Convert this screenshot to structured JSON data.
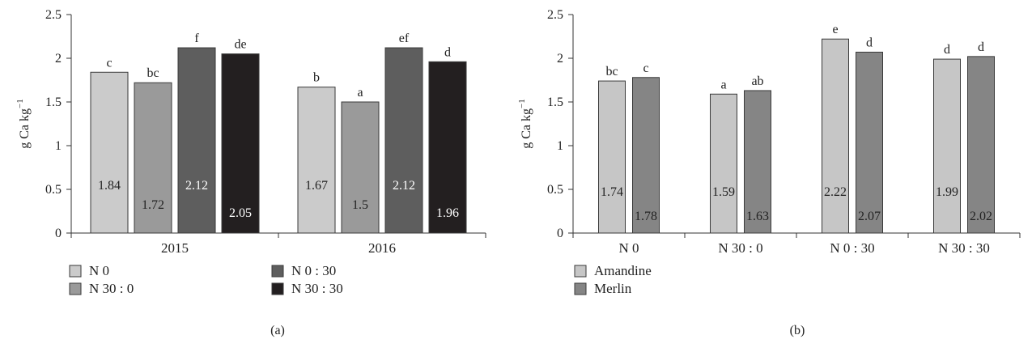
{
  "colors": {
    "axis": "#333333",
    "label_text": "#222222",
    "bar_outline": "#3a3a3a"
  },
  "chart_data": [
    {
      "panel_label": "(a)",
      "type": "bar",
      "categories": [
        "2015",
        "2016"
      ],
      "ylabel": "g Ca kg",
      "ylabel_superscript": "−1",
      "ylim": [
        0,
        2.5
      ],
      "yticks": [
        "0",
        "0.5",
        "1",
        "1.5",
        "2",
        "2.5"
      ],
      "ytick_values": [
        0,
        0.5,
        1,
        1.5,
        2,
        2.5
      ],
      "legend_columns": 2,
      "series": [
        {
          "name": "N 0",
          "color": "#cbcbcb",
          "values": [
            1.84,
            1.67
          ],
          "value_labels": [
            "1.84",
            "1.67"
          ],
          "letters": [
            "c",
            "b"
          ],
          "label_fill": "#222222"
        },
        {
          "name": "N 30 : 0",
          "color": "#9a9a9a",
          "values": [
            1.72,
            1.5
          ],
          "value_labels": [
            "1.72",
            "1.5"
          ],
          "letters": [
            "bc",
            "a"
          ],
          "label_fill": "#222222"
        },
        {
          "name": "N 0 : 30",
          "color": "#5e5e5e",
          "values": [
            2.12,
            2.12
          ],
          "value_labels": [
            "2.12",
            "2.12"
          ],
          "letters": [
            "f",
            "ef"
          ],
          "label_fill": "#ffffff"
        },
        {
          "name": "N 30 : 30",
          "color": "#231f20",
          "values": [
            2.05,
            1.96
          ],
          "value_labels": [
            "2.05",
            "1.96"
          ],
          "letters": [
            "de",
            "d"
          ],
          "label_fill": "#ffffff"
        }
      ]
    },
    {
      "panel_label": "(b)",
      "type": "bar",
      "categories": [
        "N 0",
        "N 30 : 0",
        "N 0 : 30",
        "N 30 : 30"
      ],
      "ylabel": "g Ca kg",
      "ylabel_superscript": "−1",
      "ylim": [
        0,
        2.5
      ],
      "yticks": [
        "0",
        "0.5",
        "1",
        "1.5",
        "2",
        "2.5"
      ],
      "ytick_values": [
        0,
        0.5,
        1,
        1.5,
        2,
        2.5
      ],
      "legend_columns": 1,
      "series": [
        {
          "name": "Amandine",
          "color": "#c6c6c6",
          "values": [
            1.74,
            1.59,
            2.22,
            1.99
          ],
          "value_labels": [
            "1.74",
            "1.59",
            "2.22",
            "1.99"
          ],
          "letters": [
            "bc",
            "a",
            "e",
            "d"
          ],
          "label_fill": "#222222"
        },
        {
          "name": "Merlin",
          "color": "#858585",
          "values": [
            1.78,
            1.63,
            2.07,
            2.02
          ],
          "value_labels": [
            "1.78",
            "1.63",
            "2.07",
            "2.02"
          ],
          "letters": [
            "c",
            "ab",
            "d",
            "d"
          ],
          "label_fill": "#222222"
        }
      ]
    }
  ]
}
